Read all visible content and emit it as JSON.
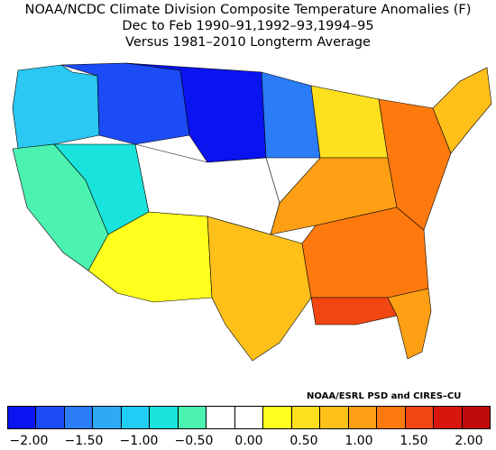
{
  "title": {
    "line1": "NOAA/NCDC Climate Division Composite Temperature Anomalies (F)",
    "line2": "Dec to Feb  1990–91,1992–93,1994–95",
    "line3": "Versus 1981–2010 Longterm Average"
  },
  "credit": "NOAA/ESRL PSD and CIRES–CU",
  "colorbar": {
    "colors": [
      "#0a14f0",
      "#1c4cf5",
      "#2a7cf7",
      "#2eaaf5",
      "#20cdf4",
      "#19e3dd",
      "#4cf2b0",
      "#ffffff",
      "#ffffff",
      "#ffff1e",
      "#ffe01e",
      "#ffc01a",
      "#ff9f14",
      "#ff7a0e",
      "#f24612",
      "#d8160e",
      "#c00a0a"
    ],
    "labels": [
      "−2.00",
      "−1.50",
      "−1.00",
      "−0.50",
      "0.00",
      "0.50",
      "1.00",
      "1.50",
      "2.00"
    ]
  },
  "regions": [
    {
      "name": "pacific-northwest",
      "color": "#2ac8f2"
    },
    {
      "name": "northern-rockies",
      "color": "#1c4cf5"
    },
    {
      "name": "northern-plains",
      "color": "#0a14f0"
    },
    {
      "name": "upper-midwest",
      "color": "#2a7cf7"
    },
    {
      "name": "california-coast",
      "color": "#4cf2b0"
    },
    {
      "name": "great-basin",
      "color": "#19e3dd"
    },
    {
      "name": "southwest",
      "color": "#ffff1e"
    },
    {
      "name": "central-plains",
      "color": "#ffffff"
    },
    {
      "name": "great-lakes",
      "color": "#ffe01e"
    },
    {
      "name": "texas",
      "color": "#ffc01a"
    },
    {
      "name": "ohio-valley",
      "color": "#ff9f14"
    },
    {
      "name": "southeast",
      "color": "#ff7a0e"
    },
    {
      "name": "gulf-coast",
      "color": "#f24612"
    },
    {
      "name": "mid-atlantic",
      "color": "#ff7a0e"
    },
    {
      "name": "new-england",
      "color": "#ffc01a"
    },
    {
      "name": "florida",
      "color": "#ff9f14"
    }
  ]
}
